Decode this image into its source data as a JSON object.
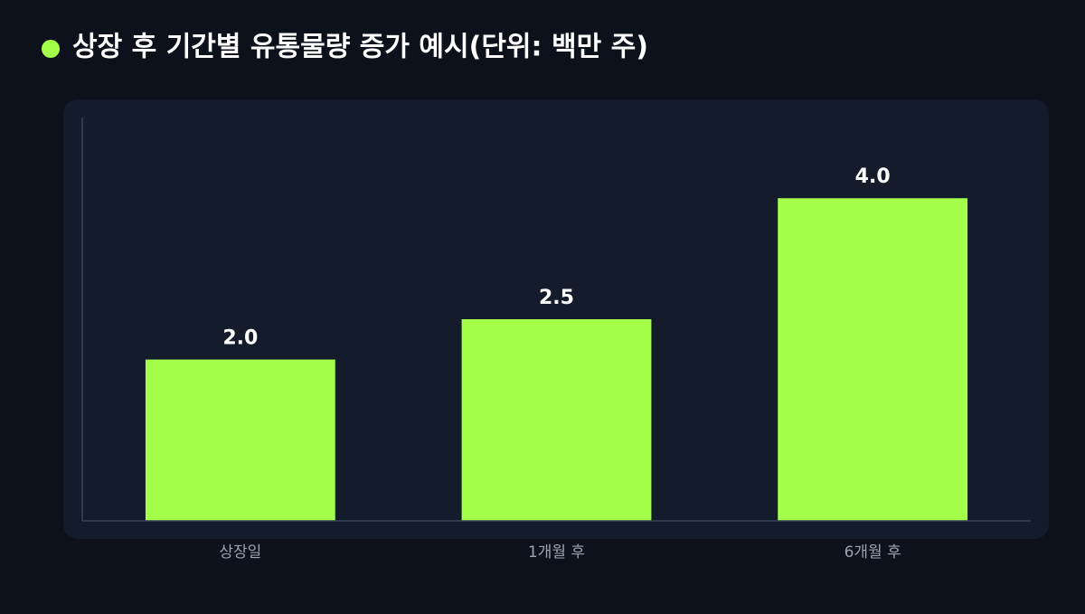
{
  "chart_data": {
    "type": "bar",
    "title": "상장 후 기간별 유통물량 증가 예시(단위: 백만 주)",
    "categories": [
      "상장일",
      "1개월 후",
      "6개월 후"
    ],
    "values": [
      2,
      2.5,
      4
    ],
    "value_labels": [
      "2.0",
      "2.5",
      "4.0"
    ],
    "color": "#a3ff4a",
    "ylim": [
      0,
      5
    ]
  }
}
